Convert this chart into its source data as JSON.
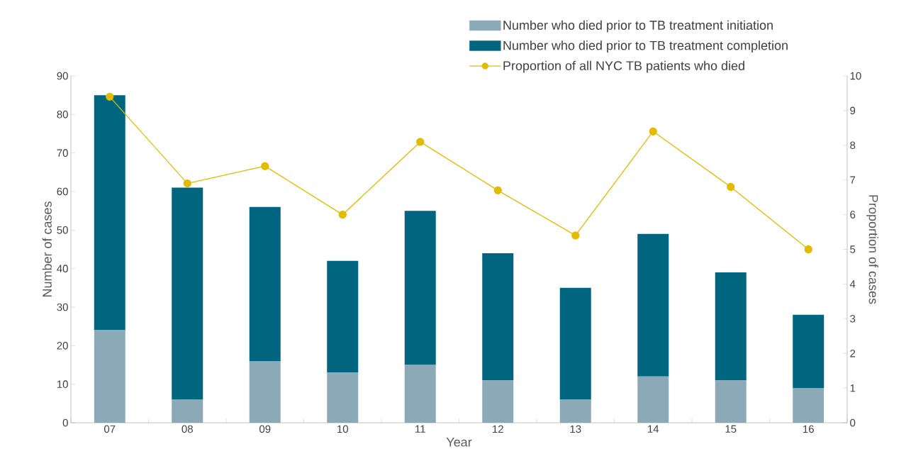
{
  "chart_data": {
    "type": "bar",
    "stacked": true,
    "categories": [
      "07",
      "08",
      "09",
      "10",
      "11",
      "12",
      "13",
      "14",
      "15",
      "16"
    ],
    "series": [
      {
        "name": "Number who died prior to TB treatment initiation",
        "color": "#8ca9b8",
        "values": [
          24,
          6,
          16,
          13,
          15,
          11,
          6,
          12,
          11,
          9
        ]
      },
      {
        "name": "Number who died prior to TB treatment completion",
        "color": "#00667f",
        "values": [
          61,
          55,
          40,
          29,
          40,
          33,
          29,
          37,
          28,
          19
        ]
      },
      {
        "name": "Proportion of all NYC TB patients who died",
        "type": "line",
        "axis": "y2",
        "color": "#e3bb00",
        "values": [
          9.4,
          6.9,
          7.4,
          6.0,
          8.1,
          6.7,
          5.4,
          8.4,
          6.8,
          5.0
        ]
      }
    ],
    "xlabel": "Year",
    "ylabel": "Number of cases",
    "y2label": "Proportion of cases",
    "ylim": [
      0,
      90
    ],
    "yticks": [
      0,
      10,
      20,
      30,
      40,
      50,
      60,
      70,
      80,
      90
    ],
    "y2lim": [
      0,
      10
    ],
    "y2ticks": [
      0,
      1,
      2,
      3,
      4,
      5,
      6,
      7,
      8,
      9,
      10
    ],
    "legend": "top right",
    "marker": "circle"
  }
}
